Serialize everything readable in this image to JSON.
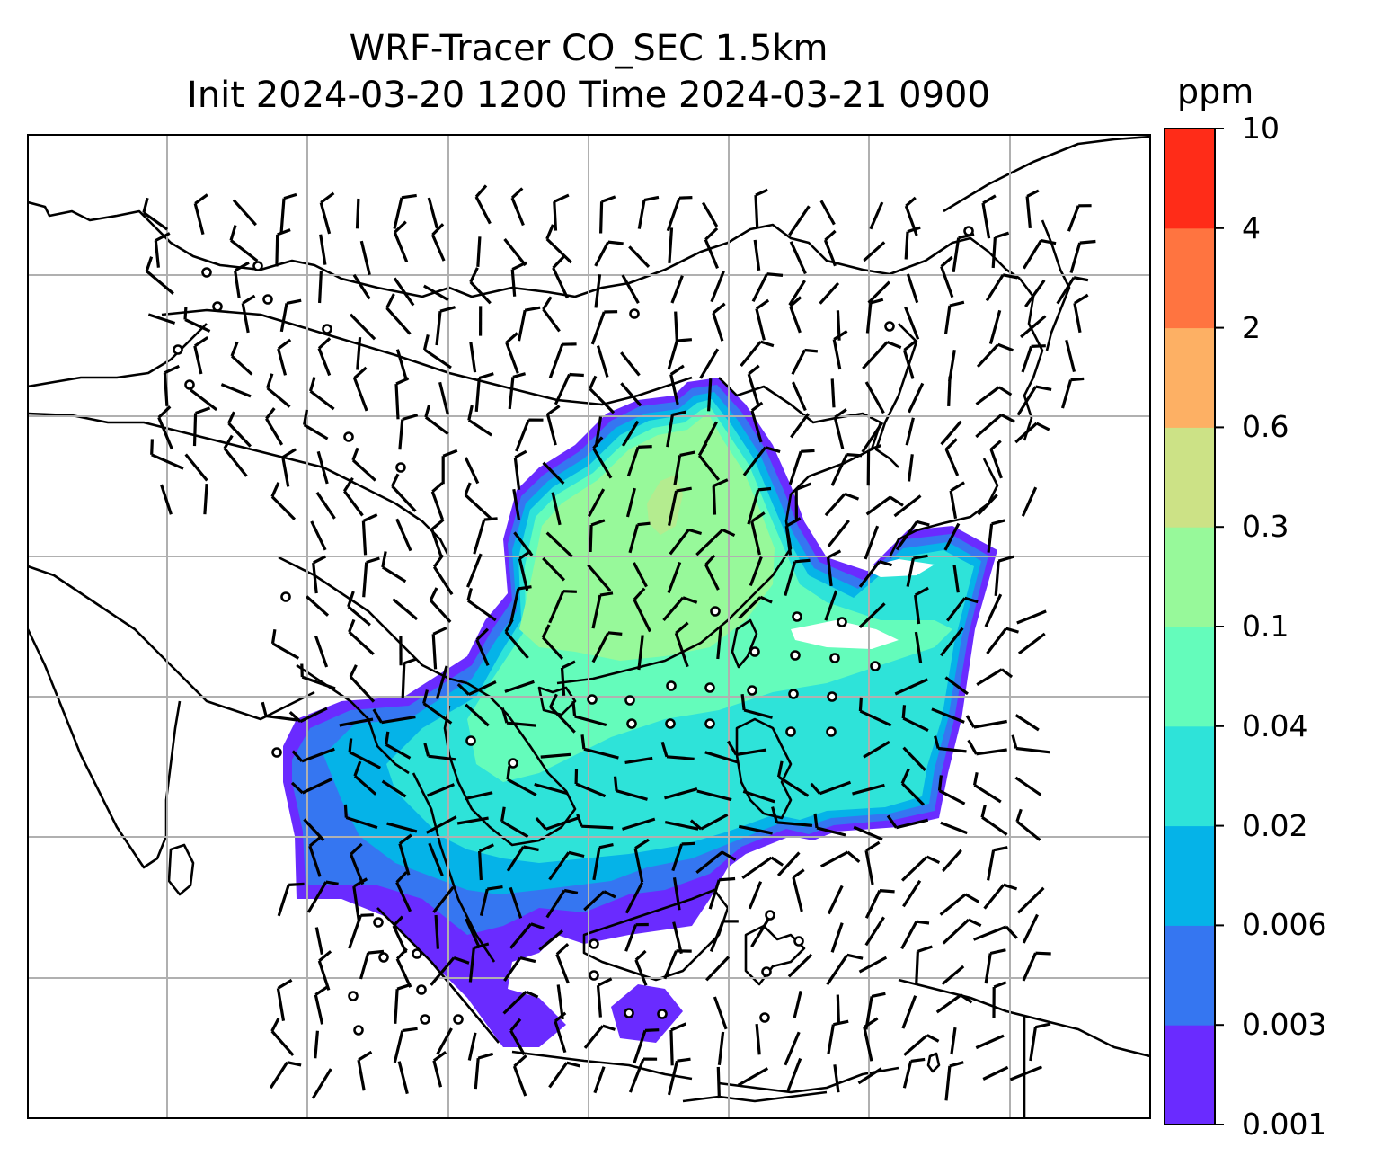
{
  "title_line1": "WRF-Tracer CO_SEC 1.5km",
  "title_line2": "Init 2024-03-20 1200 Time 2024-03-21 0900",
  "colorbar": {
    "unit": "ppm",
    "levels": [
      "0.001",
      "0.003",
      "0.006",
      "0.02",
      "0.04",
      "0.1",
      "0.3",
      "0.6",
      "2",
      "4",
      "10"
    ],
    "colors": [
      "#6a2bff",
      "#3576f1",
      "#05b3e8",
      "#2ee3d9",
      "#64fcbb",
      "#97f99a",
      "#cce286",
      "#fdb064",
      "#ff7440",
      "#ff2c18"
    ]
  },
  "map": {
    "variable": "CO_SEC tracer",
    "level": "1.5km",
    "overlay": "wind barbs",
    "calm_marker": "circle",
    "coastlines": true,
    "gridlines": true
  }
}
